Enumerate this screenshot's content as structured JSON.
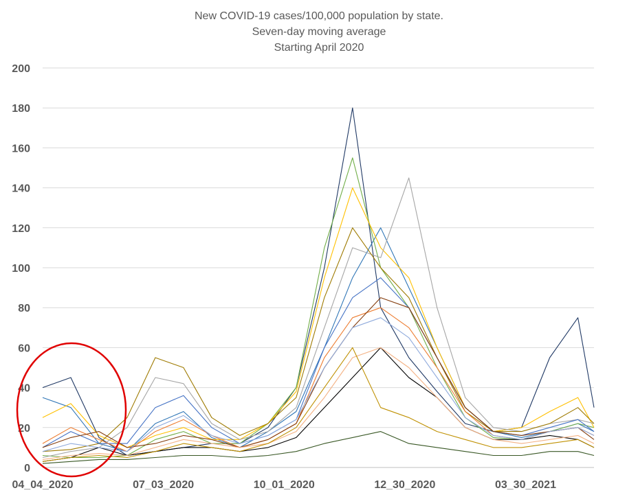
{
  "chart_data": {
    "type": "line",
    "title_lines": [
      "New COVID-19 cases/100,000 population by state.",
      "Seven-day moving average",
      "Starting April 2020"
    ],
    "xlabel": "",
    "ylabel": "",
    "ylim": [
      0,
      200
    ],
    "yticks": [
      "0",
      "20",
      "40",
      "60",
      "80",
      "100",
      "120",
      "140",
      "160",
      "180",
      "200"
    ],
    "x_start": "2020-04-04",
    "x_end": "2021-05-20",
    "xticks": [
      {
        "label": "04_04_2020",
        "date": "2020-04-04"
      },
      {
        "label": "07_03_2020",
        "date": "2020-07-03"
      },
      {
        "label": "10_01_2020",
        "date": "2020-10-01"
      },
      {
        "label": "12_30_2020",
        "date": "2020-12-30"
      },
      {
        "label": "03_30_2021",
        "date": "2021-03-30"
      }
    ],
    "grid": true,
    "legend": "none",
    "annotation": {
      "shape": "ellipse",
      "color": "#e00000"
    },
    "x_dates": [
      "2020-04-04",
      "2020-04-25",
      "2020-05-16",
      "2020-06-06",
      "2020-06-27",
      "2020-07-18",
      "2020-08-08",
      "2020-08-29",
      "2020-09-19",
      "2020-10-10",
      "2020-10-31",
      "2020-11-21",
      "2020-12-12",
      "2021-01-02",
      "2021-01-23",
      "2021-02-13",
      "2021-03-06",
      "2021-03-27",
      "2021-04-17",
      "2021-05-08",
      "2021-05-20"
    ],
    "series": [
      {
        "color": "#1f3864",
        "values": [
          40,
          45,
          15,
          6,
          8,
          10,
          12,
          12,
          20,
          40,
          100,
          180,
          80,
          55,
          38,
          22,
          18,
          20,
          55,
          75,
          30
        ]
      },
      {
        "color": "#2e75b6",
        "values": [
          35,
          30,
          12,
          8,
          22,
          28,
          15,
          10,
          18,
          28,
          60,
          95,
          120,
          90,
          60,
          30,
          18,
          15,
          18,
          22,
          18
        ]
      },
      {
        "color": "#70ad47",
        "values": [
          6,
          5,
          5,
          6,
          14,
          18,
          12,
          12,
          22,
          40,
          110,
          155,
          100,
          80,
          50,
          25,
          15,
          14,
          18,
          22,
          20
        ]
      },
      {
        "color": "#ffc000",
        "values": [
          25,
          32,
          16,
          10,
          16,
          20,
          14,
          14,
          22,
          38,
          95,
          140,
          110,
          95,
          60,
          30,
          18,
          20,
          28,
          35,
          20
        ]
      },
      {
        "color": "#a5a5a5",
        "values": [
          5,
          8,
          10,
          20,
          45,
          42,
          22,
          14,
          18,
          30,
          70,
          110,
          105,
          145,
          80,
          35,
          20,
          18,
          22,
          24,
          22
        ]
      },
      {
        "color": "#9e7a00",
        "values": [
          8,
          9,
          12,
          25,
          55,
          50,
          25,
          16,
          22,
          35,
          85,
          120,
          100,
          85,
          55,
          28,
          18,
          18,
          22,
          30,
          22
        ]
      },
      {
        "color": "#4472c4",
        "values": [
          10,
          18,
          12,
          12,
          30,
          36,
          20,
          12,
          16,
          24,
          60,
          85,
          95,
          80,
          55,
          30,
          18,
          16,
          20,
          24,
          18
        ]
      },
      {
        "color": "#ed7d31",
        "values": [
          12,
          20,
          14,
          8,
          18,
          24,
          16,
          10,
          14,
          22,
          55,
          75,
          80,
          70,
          50,
          28,
          16,
          14,
          18,
          20,
          16
        ]
      },
      {
        "color": "#843c0c",
        "values": [
          10,
          15,
          18,
          10,
          12,
          16,
          14,
          10,
          14,
          22,
          50,
          70,
          85,
          80,
          55,
          30,
          18,
          16,
          18,
          20,
          14
        ]
      },
      {
        "color": "#000000",
        "values": [
          3,
          5,
          10,
          6,
          8,
          10,
          10,
          8,
          10,
          15,
          30,
          45,
          60,
          45,
          35,
          20,
          14,
          14,
          16,
          14,
          10
        ]
      },
      {
        "color": "#375623",
        "values": [
          2,
          3,
          4,
          4,
          5,
          6,
          6,
          5,
          6,
          8,
          12,
          15,
          18,
          12,
          10,
          8,
          6,
          6,
          8,
          8,
          6
        ]
      },
      {
        "color": "#8faadc",
        "values": [
          8,
          12,
          10,
          8,
          20,
          26,
          16,
          12,
          16,
          24,
          50,
          70,
          75,
          65,
          45,
          25,
          16,
          14,
          18,
          20,
          16
        ]
      },
      {
        "color": "#f4b183",
        "values": [
          4,
          6,
          7,
          6,
          10,
          14,
          12,
          10,
          12,
          18,
          35,
          55,
          60,
          50,
          35,
          20,
          14,
          12,
          14,
          16,
          12
        ]
      },
      {
        "color": "#bf9000",
        "values": [
          3,
          5,
          6,
          5,
          8,
          12,
          10,
          8,
          12,
          20,
          40,
          60,
          30,
          25,
          18,
          14,
          10,
          10,
          12,
          14,
          10
        ]
      }
    ]
  }
}
